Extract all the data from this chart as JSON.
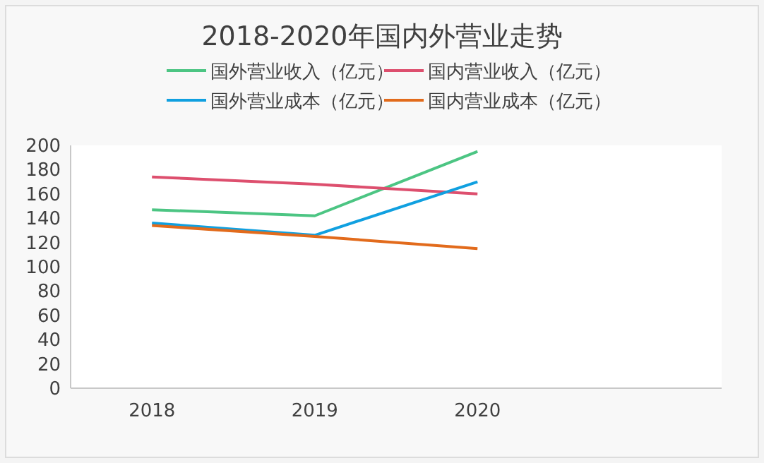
{
  "chart_data": {
    "type": "line",
    "title": "2018-2020年国内外营业走势",
    "categories": [
      "2018",
      "2019",
      "2020",
      null
    ],
    "series": [
      {
        "name": "国外营业收入（亿元）",
        "color": "#4cc583",
        "values": [
          147,
          142,
          195,
          null
        ]
      },
      {
        "name": "国内营业收入（亿元）",
        "color": "#dd4f6e",
        "values": [
          174,
          168,
          160,
          null
        ]
      },
      {
        "name": "国外营业成本（亿元）",
        "color": "#10a0e0",
        "values": [
          136,
          126,
          170,
          null
        ]
      },
      {
        "name": "国内营业成本（亿元）",
        "color": "#e26b1c",
        "values": [
          134,
          125,
          115,
          null
        ]
      }
    ],
    "ylim": [
      0,
      200
    ],
    "yticks": [
      0,
      20,
      40,
      60,
      80,
      100,
      120,
      140,
      160,
      180,
      200
    ],
    "grid": false,
    "legend": "top",
    "marker": "none",
    "line_style": "solid"
  }
}
